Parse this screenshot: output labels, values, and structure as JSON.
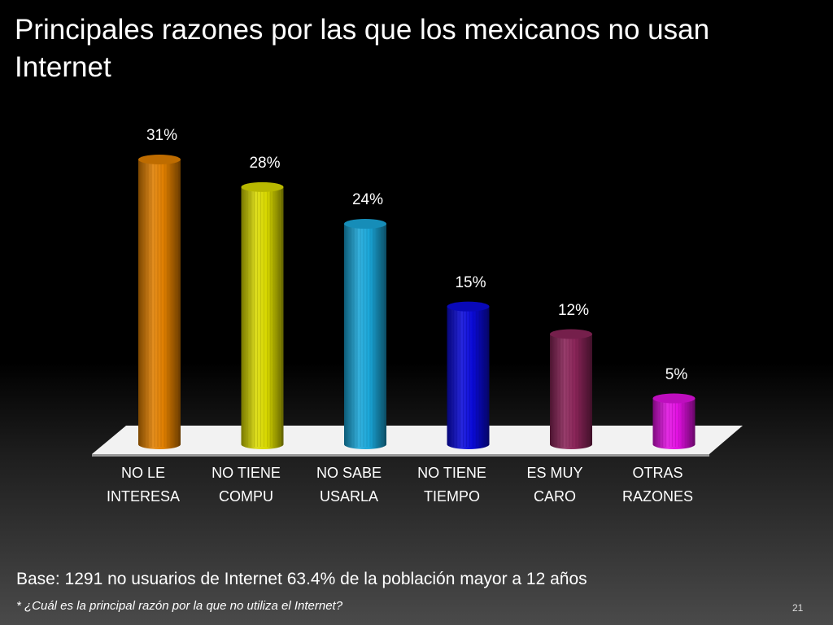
{
  "slide": {
    "title": "Principales razones por las que los mexicanos no usan Internet",
    "base_note": "Base: 1291 no usuarios de Internet 63.4% de la población mayor a 12 años",
    "question_note": "* ¿Cuál es la principal razón por la que no utiliza el Internet?",
    "slide_number": "21"
  },
  "chart_data": {
    "type": "bar",
    "categories": [
      [
        "NO LE",
        "INTERESA"
      ],
      [
        "NO TIENE",
        "COMPU"
      ],
      [
        "NO SABE",
        "USARLA"
      ],
      [
        "NO TIENE",
        "TIEMPO"
      ],
      [
        "ES MUY",
        "CARO"
      ],
      [
        "OTRAS",
        "RAZONES"
      ]
    ],
    "values": [
      31,
      28,
      24,
      15,
      12,
      5
    ],
    "value_labels": [
      "31%",
      "28%",
      "24%",
      "15%",
      "12%",
      "5%"
    ],
    "colors": [
      "#e07f00",
      "#d8d800",
      "#1aa6d8",
      "#0a0ad8",
      "#8a2458",
      "#e010e0"
    ],
    "ylim": [
      0,
      31
    ],
    "grid": false,
    "style": "3d cylinders on white floor"
  }
}
